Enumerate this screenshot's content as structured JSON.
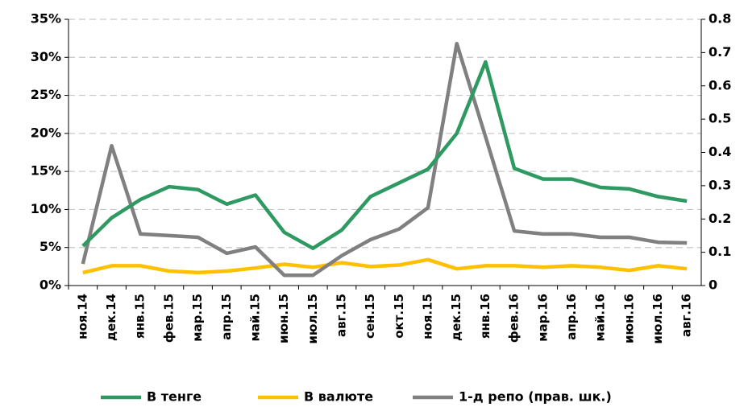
{
  "chart_data": {
    "type": "line",
    "categories": [
      "ноя.14",
      "дек.14",
      "янв.15",
      "фев.15",
      "мар.15",
      "апр.15",
      "май.15",
      "июн.15",
      "июл.15",
      "авг.15",
      "сен.15",
      "окт.15",
      "ноя.15",
      "дек.15",
      "янв.16",
      "фев.16",
      "мар.16",
      "апр.16",
      "май.16",
      "июн.16",
      "июл.16",
      "авг.16"
    ],
    "series": [
      {
        "name": "В тенге",
        "color": "#2e9a62",
        "values": [
          5.2,
          8.9,
          11.3,
          13.0,
          12.6,
          10.7,
          11.9,
          7.0,
          4.9,
          7.3,
          11.7,
          13.5,
          15.3,
          20.0,
          29.4,
          15.4,
          14.0,
          14.0,
          12.9,
          12.7,
          11.7,
          11.1
        ]
      },
      {
        "name": "В валюте",
        "color": "#ffc000",
        "values": [
          1.7,
          2.6,
          2.6,
          1.9,
          1.7,
          1.9,
          2.3,
          2.8,
          2.4,
          3.0,
          2.5,
          2.7,
          3.4,
          2.2,
          2.6,
          2.6,
          2.4,
          2.6,
          2.4,
          2.0,
          2.6,
          2.2
        ]
      },
      {
        "name": "1-д репо (прав. шк.)",
        "color": "#808080",
        "axis": "y2",
        "values": [
          0.065,
          0.42,
          0.155,
          0.15,
          0.145,
          0.097,
          0.116,
          0.031,
          0.031,
          0.09,
          0.138,
          0.17,
          0.234,
          0.727,
          0.447,
          0.164,
          0.155,
          0.155,
          0.145,
          0.145,
          0.13,
          0.128
        ]
      }
    ],
    "ylim": [
      0,
      35
    ],
    "yticks": [
      {
        "value": 0,
        "label": "0%"
      },
      {
        "value": 5,
        "label": "5%"
      },
      {
        "value": 10,
        "label": "10%"
      },
      {
        "value": 15,
        "label": "15%"
      },
      {
        "value": 20,
        "label": "20%"
      },
      {
        "value": 25,
        "label": "25%"
      },
      {
        "value": 30,
        "label": "30%"
      },
      {
        "value": 35,
        "label": "35%"
      }
    ],
    "y2lim": [
      0,
      0.8
    ],
    "y2ticks": [
      0,
      0.1,
      0.2,
      0.3,
      0.4,
      0.5,
      0.6,
      0.7,
      0.8
    ],
    "grid": true,
    "legend": "bottom"
  }
}
